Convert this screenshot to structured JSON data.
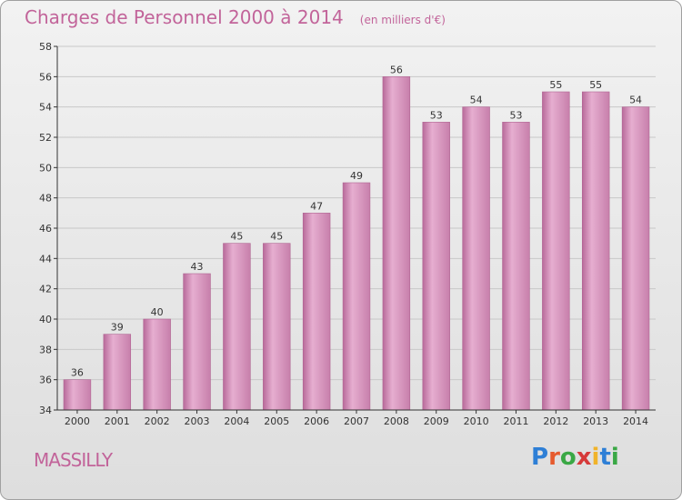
{
  "title": "Charges de Personnel 2000 à 2014",
  "subtitle": "(en milliers d'€)",
  "place": "MASSILLY",
  "logo": {
    "text": "Proxiti",
    "colors": [
      "#2e7fd6",
      "#e65b2e",
      "#3aa845",
      "#d63a3a",
      "#f0b32a",
      "#2e7fd6",
      "#3aa845"
    ]
  },
  "colors": {
    "bar": "#d48ab7",
    "bar_light": "#e6aed0",
    "bar_dark": "#b86a9a",
    "text": "#c2649a",
    "axis": "#333333"
  },
  "chart_data": {
    "type": "bar",
    "categories": [
      "2000",
      "2001",
      "2002",
      "2003",
      "2004",
      "2005",
      "2006",
      "2007",
      "2008",
      "2009",
      "2010",
      "2011",
      "2012",
      "2013",
      "2014"
    ],
    "values": [
      36,
      39,
      40,
      43,
      45,
      45,
      47,
      49,
      56,
      53,
      54,
      53,
      55,
      55,
      54
    ],
    "ylim": [
      34,
      58
    ],
    "yticks": [
      34,
      36,
      38,
      40,
      42,
      44,
      46,
      48,
      50,
      52,
      54,
      56,
      58
    ],
    "grid": true,
    "xlabel": "",
    "ylabel": ""
  }
}
